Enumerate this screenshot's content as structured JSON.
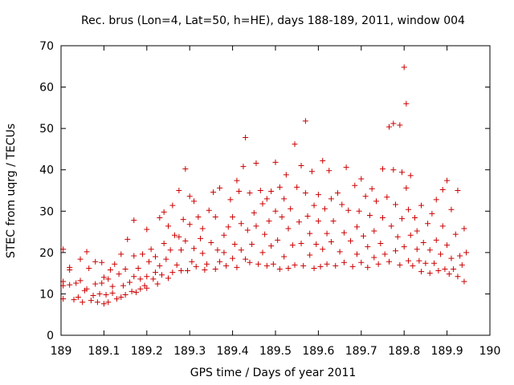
{
  "chart_data": {
    "type": "scatter",
    "title": "Rec. brus (Lon=4, Lat=50, h=HE), days 188-189, 2011, window 004",
    "xlabel": "GPS time / Days of year 2011",
    "ylabel": "STEC from uqrg / TECUs",
    "xlim": [
      189,
      190
    ],
    "ylim": [
      0,
      70
    ],
    "xticks": [
      189,
      189.1,
      189.2,
      189.3,
      189.4,
      189.5,
      189.6,
      189.7,
      189.8,
      189.9,
      190
    ],
    "xtick_labels": [
      "189",
      "189.1",
      "189.2",
      "189.3",
      "189.4",
      "189.5",
      "189.6",
      "189.7",
      "189.8",
      "189.9",
      "190"
    ],
    "yticks": [
      0,
      10,
      20,
      30,
      40,
      50,
      60,
      70
    ],
    "ytick_labels": [
      "0",
      "10",
      "20",
      "30",
      "40",
      "50",
      "60",
      "70"
    ],
    "marker": "+",
    "color": "#cc0000",
    "grid": false,
    "series": [
      {
        "name": "STEC",
        "points": [
          [
            189.005,
            8.8
          ],
          [
            189.005,
            12.0
          ],
          [
            189.005,
            13.0
          ],
          [
            189.005,
            20.8
          ],
          [
            189.02,
            15.8
          ],
          [
            189.02,
            16.4
          ],
          [
            189.02,
            12.2
          ],
          [
            189.03,
            8.6
          ],
          [
            189.035,
            12.6
          ],
          [
            189.04,
            9.2
          ],
          [
            189.045,
            18.4
          ],
          [
            189.045,
            13.2
          ],
          [
            189.05,
            8.0
          ],
          [
            189.055,
            10.8
          ],
          [
            189.06,
            11.2
          ],
          [
            189.06,
            20.2
          ],
          [
            189.065,
            16.2
          ],
          [
            189.07,
            8.4
          ],
          [
            189.075,
            9.6
          ],
          [
            189.08,
            12.4
          ],
          [
            189.08,
            17.8
          ],
          [
            189.085,
            8.0
          ],
          [
            189.09,
            10.0
          ],
          [
            189.095,
            17.6
          ],
          [
            189.095,
            12.6
          ],
          [
            189.1,
            7.6
          ],
          [
            189.1,
            14.0
          ],
          [
            189.105,
            9.8
          ],
          [
            189.11,
            13.6
          ],
          [
            189.11,
            8.0
          ],
          [
            189.115,
            15.8
          ],
          [
            189.12,
            11.8
          ],
          [
            189.12,
            10.2
          ],
          [
            189.125,
            17.2
          ],
          [
            189.13,
            8.8
          ],
          [
            189.135,
            14.8
          ],
          [
            189.14,
            9.2
          ],
          [
            189.14,
            19.6
          ],
          [
            189.145,
            12.0
          ],
          [
            189.15,
            16.0
          ],
          [
            189.15,
            9.8
          ],
          [
            189.155,
            23.2
          ],
          [
            189.16,
            12.8
          ],
          [
            189.165,
            10.6
          ],
          [
            189.17,
            27.8
          ],
          [
            189.17,
            14.2
          ],
          [
            189.17,
            19.2
          ],
          [
            189.175,
            10.4
          ],
          [
            189.18,
            16.2
          ],
          [
            189.185,
            11.2
          ],
          [
            189.185,
            13.6
          ],
          [
            189.19,
            19.6
          ],
          [
            189.195,
            12.0
          ],
          [
            189.2,
            25.6
          ],
          [
            189.2,
            14.2
          ],
          [
            189.2,
            11.4
          ],
          [
            189.205,
            17.8
          ],
          [
            189.21,
            20.8
          ],
          [
            189.215,
            13.6
          ],
          [
            189.22,
            15.2
          ],
          [
            189.22,
            19.0
          ],
          [
            189.225,
            12.4
          ],
          [
            189.23,
            28.4
          ],
          [
            189.23,
            16.8
          ],
          [
            189.235,
            14.6
          ],
          [
            189.24,
            22.2
          ],
          [
            189.24,
            29.8
          ],
          [
            189.245,
            18.4
          ],
          [
            189.25,
            13.8
          ],
          [
            189.25,
            26.4
          ],
          [
            189.255,
            20.6
          ],
          [
            189.26,
            31.4
          ],
          [
            189.26,
            15.2
          ],
          [
            189.265,
            24.2
          ],
          [
            189.27,
            17.0
          ],
          [
            189.275,
            35.0
          ],
          [
            189.275,
            23.8
          ],
          [
            189.28,
            20.6
          ],
          [
            189.28,
            15.6
          ],
          [
            189.285,
            28.0
          ],
          [
            189.29,
            40.2
          ],
          [
            189.29,
            22.8
          ],
          [
            189.295,
            15.6
          ],
          [
            189.3,
            33.6
          ],
          [
            189.3,
            26.8
          ],
          [
            189.305,
            17.8
          ],
          [
            189.31,
            21.0
          ],
          [
            189.31,
            32.4
          ],
          [
            189.315,
            16.6
          ],
          [
            189.32,
            28.6
          ],
          [
            189.325,
            23.4
          ],
          [
            189.33,
            19.8
          ],
          [
            189.33,
            25.8
          ],
          [
            189.335,
            15.8
          ],
          [
            189.34,
            17.2
          ],
          [
            189.345,
            30.2
          ],
          [
            189.35,
            22.4
          ],
          [
            189.355,
            34.6
          ],
          [
            189.36,
            16.0
          ],
          [
            189.36,
            28.6
          ],
          [
            189.365,
            20.6
          ],
          [
            189.37,
            35.6
          ],
          [
            189.37,
            17.8
          ],
          [
            189.38,
            24.2
          ],
          [
            189.38,
            20.0
          ],
          [
            189.385,
            16.8
          ],
          [
            189.39,
            26.2
          ],
          [
            189.395,
            32.8
          ],
          [
            189.4,
            18.6
          ],
          [
            189.4,
            28.6
          ],
          [
            189.405,
            22.0
          ],
          [
            189.41,
            37.4
          ],
          [
            189.41,
            16.4
          ],
          [
            189.415,
            34.8
          ],
          [
            189.42,
            20.6
          ],
          [
            189.42,
            27.0
          ],
          [
            189.425,
            40.8
          ],
          [
            189.43,
            47.8
          ],
          [
            189.43,
            18.4
          ],
          [
            189.435,
            25.4
          ],
          [
            189.44,
            34.4
          ],
          [
            189.44,
            17.6
          ],
          [
            189.445,
            22.0
          ],
          [
            189.45,
            29.6
          ],
          [
            189.455,
            41.6
          ],
          [
            189.455,
            26.4
          ],
          [
            189.46,
            17.2
          ],
          [
            189.465,
            35.0
          ],
          [
            189.47,
            20.0
          ],
          [
            189.47,
            31.8
          ],
          [
            189.475,
            24.4
          ],
          [
            189.48,
            33.0
          ],
          [
            189.48,
            16.8
          ],
          [
            189.485,
            27.6
          ],
          [
            189.49,
            34.8
          ],
          [
            189.49,
            21.6
          ],
          [
            189.495,
            17.2
          ],
          [
            189.5,
            30.0
          ],
          [
            189.5,
            41.8
          ],
          [
            189.505,
            23.0
          ],
          [
            189.51,
            16.0
          ],
          [
            189.51,
            35.8
          ],
          [
            189.515,
            28.6
          ],
          [
            189.52,
            19.0
          ],
          [
            189.52,
            33.0
          ],
          [
            189.525,
            38.8
          ],
          [
            189.53,
            16.2
          ],
          [
            189.53,
            25.8
          ],
          [
            189.535,
            30.6
          ],
          [
            189.54,
            21.8
          ],
          [
            189.545,
            46.2
          ],
          [
            189.545,
            17.0
          ],
          [
            189.55,
            35.8
          ],
          [
            189.555,
            27.4
          ],
          [
            189.56,
            41.0
          ],
          [
            189.56,
            22.2
          ],
          [
            189.565,
            16.8
          ],
          [
            189.57,
            51.8
          ],
          [
            189.57,
            34.4
          ],
          [
            189.575,
            28.8
          ],
          [
            189.58,
            19.4
          ],
          [
            189.58,
            24.6
          ],
          [
            189.585,
            39.6
          ],
          [
            189.59,
            16.2
          ],
          [
            189.59,
            31.4
          ],
          [
            189.595,
            22.0
          ],
          [
            189.6,
            34.0
          ],
          [
            189.6,
            27.6
          ],
          [
            189.605,
            16.6
          ],
          [
            189.61,
            42.2
          ],
          [
            189.61,
            20.8
          ],
          [
            189.615,
            30.6
          ],
          [
            189.62,
            24.6
          ],
          [
            189.62,
            17.2
          ],
          [
            189.625,
            39.8
          ],
          [
            189.63,
            33.0
          ],
          [
            189.63,
            22.6
          ],
          [
            189.635,
            27.6
          ],
          [
            189.64,
            16.8
          ],
          [
            189.645,
            34.4
          ],
          [
            189.65,
            20.2
          ],
          [
            189.655,
            31.6
          ],
          [
            189.66,
            24.8
          ],
          [
            189.66,
            17.6
          ],
          [
            189.665,
            40.6
          ],
          [
            189.67,
            30.2
          ],
          [
            189.675,
            22.8
          ],
          [
            189.68,
            16.6
          ],
          [
            189.685,
            36.2
          ],
          [
            189.69,
            26.2
          ],
          [
            189.69,
            19.6
          ],
          [
            189.695,
            30.0
          ],
          [
            189.7,
            17.6
          ],
          [
            189.7,
            37.8
          ],
          [
            189.705,
            24.0
          ],
          [
            189.71,
            33.6
          ],
          [
            189.715,
            16.4
          ],
          [
            189.715,
            21.4
          ],
          [
            189.72,
            29.0
          ],
          [
            189.725,
            35.4
          ],
          [
            189.73,
            18.8
          ],
          [
            189.73,
            25.2
          ],
          [
            189.735,
            32.4
          ],
          [
            189.74,
            17.2
          ],
          [
            189.745,
            22.2
          ],
          [
            189.75,
            40.2
          ],
          [
            189.75,
            28.4
          ],
          [
            189.755,
            19.6
          ],
          [
            189.76,
            33.4
          ],
          [
            189.765,
            50.4
          ],
          [
            189.765,
            17.8
          ],
          [
            189.77,
            26.4
          ],
          [
            189.775,
            51.2
          ],
          [
            189.775,
            40.0
          ],
          [
            189.78,
            20.4
          ],
          [
            189.78,
            31.6
          ],
          [
            189.785,
            23.8
          ],
          [
            189.79,
            50.8
          ],
          [
            189.79,
            17.0
          ],
          [
            189.795,
            39.4
          ],
          [
            189.795,
            28.2
          ],
          [
            189.8,
            64.8
          ],
          [
            189.8,
            21.4
          ],
          [
            189.805,
            56.0
          ],
          [
            189.805,
            35.6
          ],
          [
            189.81,
            18.0
          ],
          [
            189.81,
            30.4
          ],
          [
            189.815,
            38.6
          ],
          [
            189.815,
            24.2
          ],
          [
            189.82,
            16.8
          ],
          [
            189.825,
            28.4
          ],
          [
            189.83,
            20.8
          ],
          [
            189.83,
            25.2
          ],
          [
            189.835,
            18.0
          ],
          [
            189.84,
            31.4
          ],
          [
            189.84,
            15.4
          ],
          [
            189.845,
            22.4
          ],
          [
            189.85,
            17.4
          ],
          [
            189.855,
            27.0
          ],
          [
            189.86,
            15.0
          ],
          [
            189.86,
            20.6
          ],
          [
            189.865,
            29.4
          ],
          [
            189.87,
            17.4
          ],
          [
            189.875,
            32.8
          ],
          [
            189.875,
            23.0
          ],
          [
            189.88,
            15.6
          ],
          [
            189.885,
            19.6
          ],
          [
            189.89,
            26.4
          ],
          [
            189.89,
            35.2
          ],
          [
            189.895,
            16.0
          ],
          [
            189.9,
            37.4
          ],
          [
            189.9,
            21.8
          ],
          [
            189.905,
            14.8
          ],
          [
            189.91,
            30.4
          ],
          [
            189.91,
            18.6
          ],
          [
            189.915,
            16.0
          ],
          [
            189.92,
            24.4
          ],
          [
            189.925,
            35.0
          ],
          [
            189.925,
            14.2
          ],
          [
            189.93,
            19.2
          ],
          [
            189.935,
            17.0
          ],
          [
            189.94,
            25.8
          ],
          [
            189.94,
            13.0
          ],
          [
            189.945,
            20.0
          ]
        ]
      }
    ]
  }
}
